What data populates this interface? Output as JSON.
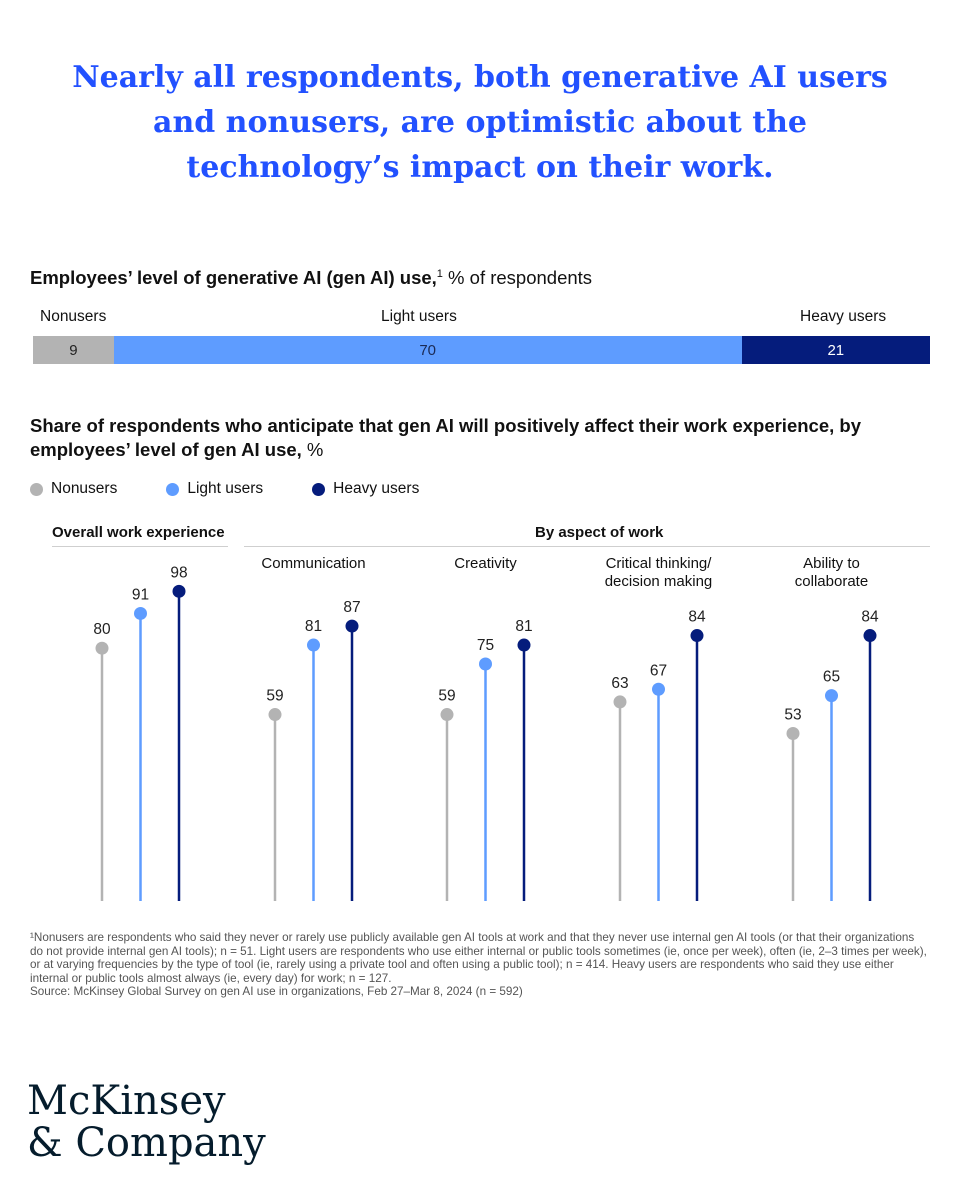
{
  "headline": "Nearly all respondents, both generative AI users and nonusers, are optimistic about the technology’s impact on their work.",
  "split": {
    "title_bold": "Employees’ level of generative AI (gen AI) use,",
    "title_sup": "1",
    "title_rest": " % of respondents",
    "segments": [
      {
        "label": "Nonusers",
        "value": 9,
        "color": "#b3b3b3",
        "text_color": "#222222"
      },
      {
        "label": "Light users",
        "value": 70,
        "color": "#5e9cff",
        "text_color": "#1b2a55"
      },
      {
        "label": "Heavy users",
        "value": 21,
        "color": "#051c7c",
        "text_color": "#ffffff"
      }
    ]
  },
  "chart_title_bold": "Share of respondents who anticipate that gen AI will positively affect their work experience, by employees’ level of gen AI use,",
  "chart_title_rest": " %",
  "chart_data": {
    "type": "lollipop",
    "title": "Share of respondents who anticipate that gen AI will positively affect their work experience, by employees’ level of gen AI use, %",
    "group_labels": [
      "Overall work experience",
      "By aspect of work"
    ],
    "categories": [
      "Overall work experience",
      "Communication",
      "Creativity",
      "Critical thinking/ decision making",
      "Ability to collaborate"
    ],
    "category_lines": [
      [],
      [
        "Communication"
      ],
      [
        "Creativity"
      ],
      [
        "Critical thinking/",
        "decision making"
      ],
      [
        "Ability to",
        "collaborate"
      ]
    ],
    "series": [
      {
        "name": "Nonusers",
        "color": "#b3b3b3",
        "values": [
          80,
          59,
          59,
          63,
          53
        ]
      },
      {
        "name": "Light users",
        "color": "#5e9cff",
        "values": [
          91,
          81,
          75,
          67,
          65
        ]
      },
      {
        "name": "Heavy users",
        "color": "#051c7c",
        "values": [
          98,
          87,
          81,
          84,
          84
        ]
      }
    ],
    "ylim": [
      0,
      100
    ]
  },
  "footnote": {
    "note": "¹Nonusers are respondents who said they never or rarely use publicly available gen AI tools at work and that they never use internal gen AI tools (or that their organizations do not provide internal gen AI tools); n = 51. Light users are respondents who use either internal or public tools sometimes (ie, once per week), often (ie, 2–3 times per week), or at varying frequencies by the type of tool (ie, rarely using a private tool and often using a public tool); n = 414. Heavy users are respondents who said they use either internal or public tools almost always (ie, every day) for work; n = 127.",
    "source": "Source: McKinsey Global Survey on gen AI use in organizations, Feb 27–Mar 8, 2024 (n = 592)"
  },
  "logo": {
    "line1": "McKinsey",
    "line2": "& Company"
  }
}
